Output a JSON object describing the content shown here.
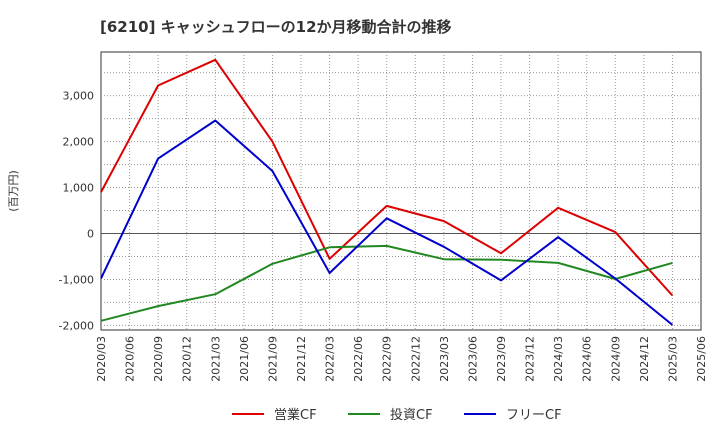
{
  "chart_data": {
    "type": "line",
    "title": "[6210]  キャッシュフローの12か月移動合計の推移",
    "ylabel": "(百万円)",
    "xlabel": "",
    "ylim": [
      -2100,
      3950
    ],
    "yticks": [
      3000,
      2000,
      1000,
      0,
      -1000,
      -2000
    ],
    "ytick_labels": [
      "3,000",
      "2,000",
      "1,000",
      "0",
      "-1,000",
      "-2,000"
    ],
    "categories": [
      "2020/03",
      "2020/06",
      "2020/09",
      "2020/12",
      "2021/03",
      "2021/06",
      "2021/09",
      "2021/12",
      "2022/03",
      "2022/06",
      "2022/09",
      "2022/12",
      "2023/03",
      "2023/06",
      "2023/09",
      "2023/12",
      "2024/03",
      "2024/06",
      "2024/09",
      "2024/12",
      "2025/03",
      "2025/06"
    ],
    "grid": true,
    "legend_position": "bottom",
    "series": [
      {
        "name": "営業CF",
        "color": "#dd0000",
        "points": [
          [
            "2020/03",
            900
          ],
          [
            "2020/09",
            3220
          ],
          [
            "2021/03",
            3780
          ],
          [
            "2021/09",
            2000
          ],
          [
            "2022/03",
            -550
          ],
          [
            "2022/09",
            600
          ],
          [
            "2023/03",
            270
          ],
          [
            "2023/09",
            -430
          ],
          [
            "2024/03",
            560
          ],
          [
            "2024/09",
            30
          ],
          [
            "2025/03",
            -1350
          ]
        ]
      },
      {
        "name": "投資CF",
        "color": "#228822",
        "points": [
          [
            "2020/03",
            -1900
          ],
          [
            "2020/09",
            -1580
          ],
          [
            "2021/03",
            -1320
          ],
          [
            "2021/09",
            -660
          ],
          [
            "2022/03",
            -300
          ],
          [
            "2022/09",
            -270
          ],
          [
            "2023/03",
            -560
          ],
          [
            "2023/09",
            -570
          ],
          [
            "2024/03",
            -640
          ],
          [
            "2024/09",
            -990
          ],
          [
            "2025/03",
            -640
          ]
        ]
      },
      {
        "name": "フリーCF",
        "color": "#0000cc",
        "points": [
          [
            "2020/03",
            -980
          ],
          [
            "2020/09",
            1630
          ],
          [
            "2021/03",
            2460
          ],
          [
            "2021/09",
            1360
          ],
          [
            "2022/03",
            -860
          ],
          [
            "2022/09",
            330
          ],
          [
            "2023/03",
            -290
          ],
          [
            "2023/09",
            -1020
          ],
          [
            "2024/03",
            -80
          ],
          [
            "2024/09",
            -980
          ],
          [
            "2025/03",
            -1990
          ]
        ]
      }
    ]
  }
}
